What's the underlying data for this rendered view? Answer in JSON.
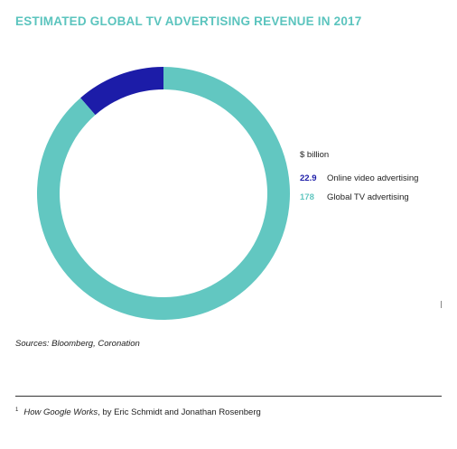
{
  "colors": {
    "title": "#5bc4be",
    "online": "#1c1ca8",
    "tv": "#62c7c1"
  },
  "chart_data": {
    "type": "pie",
    "title": "ESTIMATED GLOBAL TV ADVERTISING REVENUE IN 2017",
    "unit_label": "$ billion",
    "series": [
      {
        "name": "Online video advertising",
        "label": "22.9",
        "value": 22.9,
        "color": "#1c1ca8"
      },
      {
        "name": "Global TV advertising",
        "label": "178",
        "value": 178,
        "color": "#62c7c1"
      }
    ],
    "legend_position": "right"
  },
  "sources": "Sources: Bloomberg, Coronation",
  "footnote": {
    "marker": "1",
    "book": "How Google Works",
    "rest": ", by Eric Schmidt and Jonathan Rosenberg"
  }
}
